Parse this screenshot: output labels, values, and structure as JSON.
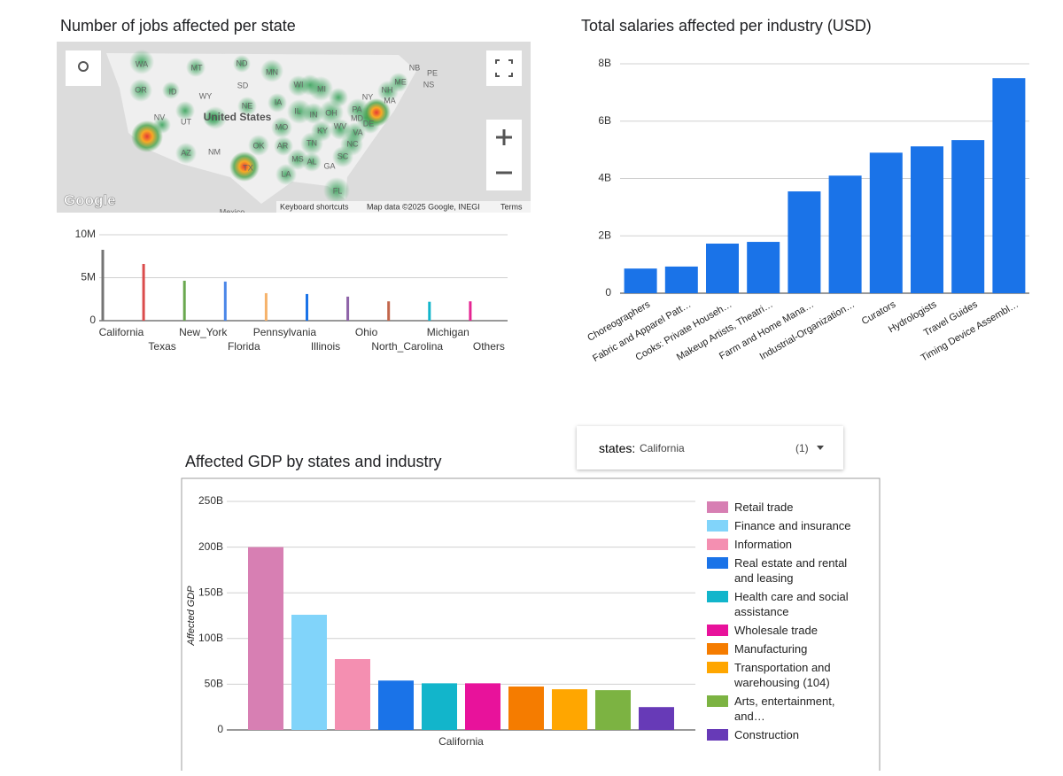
{
  "chart_data": [
    {
      "type": "bar",
      "title": "Number of jobs affected per state",
      "categories": [
        "California",
        "Texas",
        "New_York",
        "Florida",
        "Pennsylvania",
        "Illinois",
        "Ohio",
        "North_Carolina",
        "Michigan",
        "Others"
      ],
      "values": [
        8250000,
        6600000,
        4650000,
        4550000,
        3200000,
        3100000,
        2800000,
        2250000,
        2200000,
        2250000
      ],
      "colors": [
        "#757575",
        "#db4c4c",
        "#6aa84f",
        "#4a86e8",
        "#f6b26b",
        "#1a73e8",
        "#8e63a8",
        "#c2664b",
        "#12b5cb",
        "#e52592"
      ],
      "ylim": [
        0,
        10000000
      ],
      "yticks": [
        0,
        {
          "value": 5000000,
          "label": "5M"
        },
        {
          "value": 10000000,
          "label": "10M"
        }
      ],
      "grid": true
    },
    {
      "type": "bar",
      "title": "Total salaries affected per industry (USD)",
      "categories": [
        "Choreographers",
        "Fabric and Apparel Patt…",
        "Cooks: Private Househ…",
        "Makeup Artists, Theatri…",
        "Farm and Home Mana…",
        "Industrial-Organization…",
        "Curators",
        "Hydrologists",
        "Travel Guides",
        "Timing Device Assembl…"
      ],
      "values": [
        860000000,
        930000000,
        1730000000,
        1790000000,
        3550000000,
        4100000000,
        4900000000,
        5120000000,
        5340000000,
        7500000000
      ],
      "color": "#1a73e8",
      "ylim": [
        0,
        8000000000
      ],
      "yticks": [
        0,
        {
          "value": 2000000000,
          "label": "2B"
        },
        {
          "value": 4000000000,
          "label": "4B"
        },
        {
          "value": 6000000000,
          "label": "6B"
        },
        {
          "value": 8000000000,
          "label": "8B"
        }
      ],
      "grid": true
    },
    {
      "type": "grouped_bar",
      "title": "Affected GDP by states and industry",
      "y_label": "Affected GDP",
      "categories": [
        "California"
      ],
      "series": [
        {
          "name": "Retail trade",
          "color": "#d77fb3",
          "values": [
            200000000000
          ]
        },
        {
          "name": "Finance and insurance",
          "color": "#81d4fa",
          "values": [
            126000000000
          ]
        },
        {
          "name": "Information",
          "color": "#f48fb1",
          "values": [
            77500000000
          ]
        },
        {
          "name": "Real estate and rental and leasing",
          "color": "#1a73e8",
          "values": [
            54000000000
          ]
        },
        {
          "name": "Health care and social assistance",
          "color": "#12b5cb",
          "values": [
            51000000000
          ]
        },
        {
          "name": "Wholesale trade",
          "color": "#e8129b",
          "values": [
            51000000000
          ]
        },
        {
          "name": "Manufacturing",
          "color": "#f57c00",
          "values": [
            47500000000
          ]
        },
        {
          "name": "Transportation and warehousing (104)",
          "color": "#ffa600",
          "values": [
            44500000000
          ]
        },
        {
          "name": "Arts, entertainment, and…",
          "color": "#7cb342",
          "values": [
            43500000000
          ]
        },
        {
          "name": "Construction",
          "color": "#673ab7",
          "values": [
            25000000000
          ]
        }
      ],
      "ylim": [
        0,
        250000000000
      ],
      "yticks": [
        0,
        {
          "value": 50000000000,
          "label": "50B"
        },
        {
          "value": 100000000000,
          "label": "100B"
        },
        {
          "value": 150000000000,
          "label": "150B"
        },
        {
          "value": 200000000000,
          "label": "200B"
        },
        {
          "value": 250000000000,
          "label": "250B"
        }
      ],
      "grid": true,
      "legend": "right"
    }
  ],
  "map": {
    "labels": [
      "WA",
      "MT",
      "ND",
      "MN",
      "NB",
      "PE",
      "ME",
      "NS",
      "OR",
      "ID",
      "SD",
      "WI",
      "MI",
      "NY",
      "NH",
      "WY",
      "IA",
      "MA",
      "NV",
      "UT",
      "United States",
      "NE",
      "IL",
      "IN",
      "OH",
      "PA",
      "MD",
      "DE",
      "MO",
      "KY",
      "WV",
      "VA",
      "OK",
      "AR",
      "TN",
      "NC",
      "AZ",
      "NM",
      "TX",
      "MS",
      "AL",
      "GA",
      "SC",
      "LA",
      "FL",
      "Mexico"
    ],
    "logo": "Google",
    "attribution": [
      "Keyboard shortcuts",
      "Map data ©2025 Google, INEGI",
      "Terms"
    ]
  },
  "filter": {
    "label": "states:",
    "value": "California",
    "count": "(1)"
  }
}
